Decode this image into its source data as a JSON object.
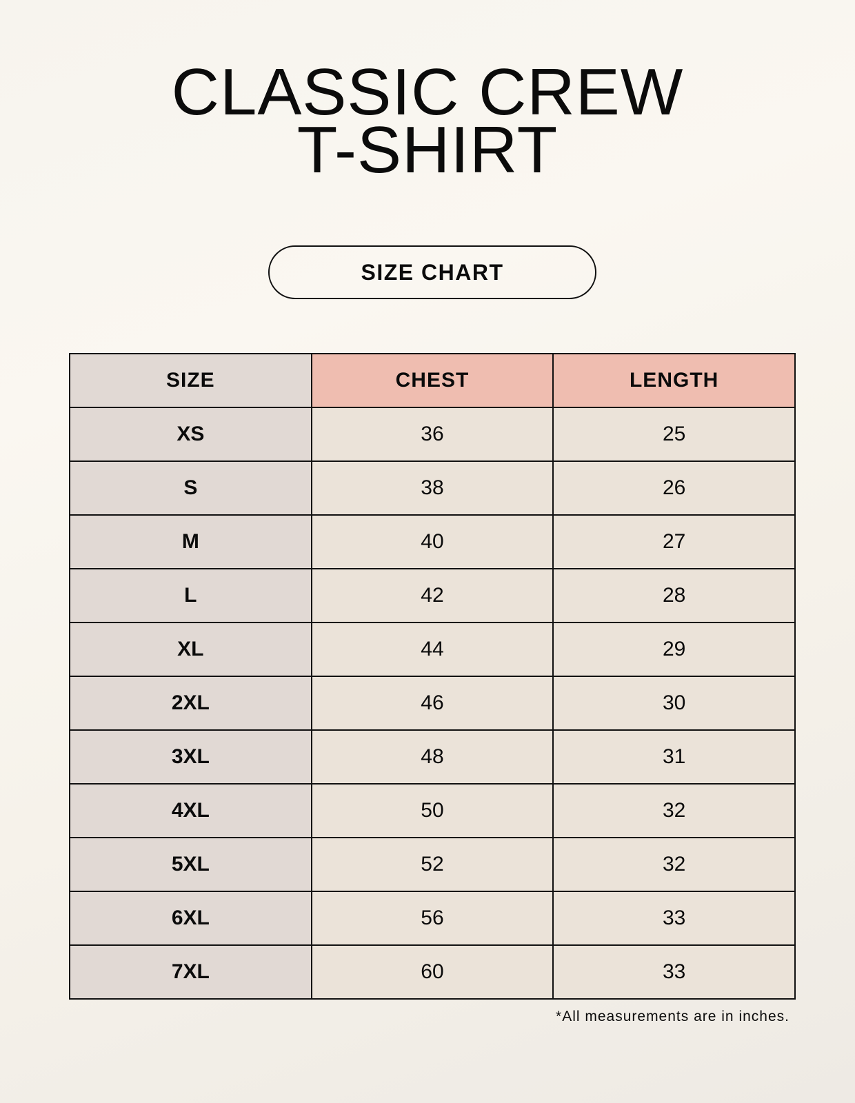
{
  "title": {
    "line1": "CLASSIC CREW",
    "line2": "T-SHIRT"
  },
  "badge": "SIZE CHART",
  "colors": {
    "size_column": "#e1d9d4",
    "header_accent": "#efbdb0",
    "value_cells": "#ebe3d9"
  },
  "table": {
    "headers": [
      "SIZE",
      "CHEST",
      "LENGTH"
    ],
    "rows": [
      [
        "XS",
        "36",
        "25"
      ],
      [
        "S",
        "38",
        "26"
      ],
      [
        "M",
        "40",
        "27"
      ],
      [
        "L",
        "42",
        "28"
      ],
      [
        "XL",
        "44",
        "29"
      ],
      [
        "2XL",
        "46",
        "30"
      ],
      [
        "3XL",
        "48",
        "31"
      ],
      [
        "4XL",
        "50",
        "32"
      ],
      [
        "5XL",
        "52",
        "32"
      ],
      [
        "6XL",
        "56",
        "33"
      ],
      [
        "7XL",
        "60",
        "33"
      ]
    ]
  },
  "footnote": "*All measurements are in inches."
}
